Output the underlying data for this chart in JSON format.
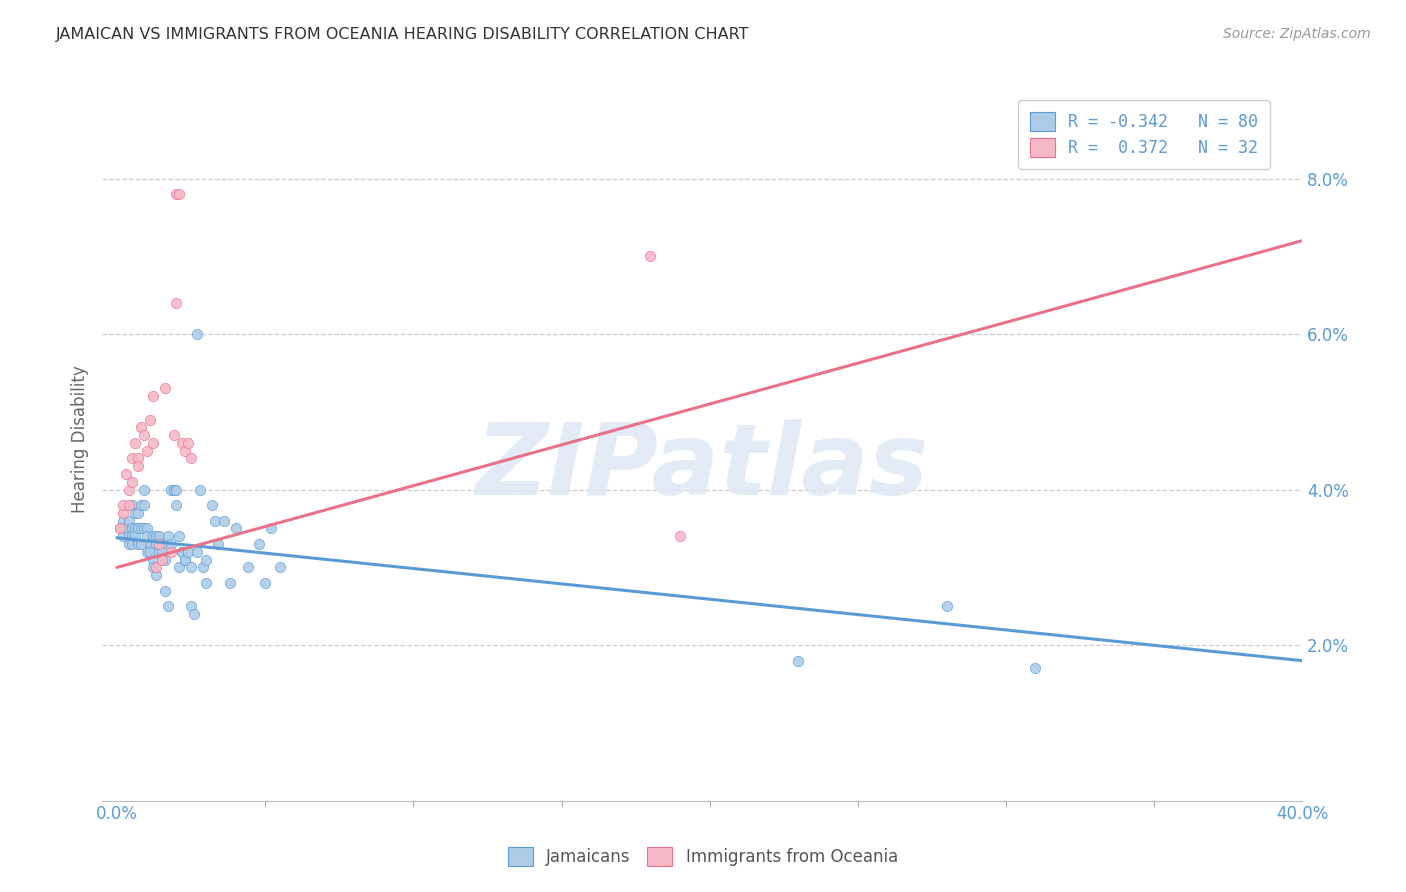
{
  "title": "JAMAICAN VS IMMIGRANTS FROM OCEANIA HEARING DISABILITY CORRELATION CHART",
  "source": "Source: ZipAtlas.com",
  "ylabel": "Hearing Disability",
  "legend_blue_label": "Jamaicans",
  "legend_pink_label": "Immigrants from Oceania",
  "legend_line1": "R = -0.342   N = 80",
  "legend_line2": "R =  0.372   N = 32",
  "watermark": "ZIPatlas",
  "blue_color": "#aecce8",
  "blue_line_color": "#5b9bd5",
  "pink_color": "#f4b8c8",
  "pink_line_color": "#e8728a",
  "blue_scatter": [
    [
      0.001,
      0.035
    ],
    [
      0.002,
      0.034
    ],
    [
      0.002,
      0.036
    ],
    [
      0.003,
      0.035
    ],
    [
      0.003,
      0.035
    ],
    [
      0.004,
      0.034
    ],
    [
      0.004,
      0.033
    ],
    [
      0.004,
      0.036
    ],
    [
      0.005,
      0.035
    ],
    [
      0.005,
      0.034
    ],
    [
      0.005,
      0.033
    ],
    [
      0.005,
      0.038
    ],
    [
      0.006,
      0.037
    ],
    [
      0.006,
      0.035
    ],
    [
      0.006,
      0.034
    ],
    [
      0.007,
      0.035
    ],
    [
      0.007,
      0.033
    ],
    [
      0.007,
      0.037
    ],
    [
      0.008,
      0.035
    ],
    [
      0.008,
      0.038
    ],
    [
      0.008,
      0.033
    ],
    [
      0.009,
      0.035
    ],
    [
      0.009,
      0.04
    ],
    [
      0.009,
      0.038
    ],
    [
      0.01,
      0.032
    ],
    [
      0.01,
      0.035
    ],
    [
      0.01,
      0.034
    ],
    [
      0.011,
      0.033
    ],
    [
      0.011,
      0.033
    ],
    [
      0.011,
      0.032
    ],
    [
      0.012,
      0.031
    ],
    [
      0.012,
      0.034
    ],
    [
      0.012,
      0.03
    ],
    [
      0.013,
      0.029
    ],
    [
      0.013,
      0.034
    ],
    [
      0.013,
      0.033
    ],
    [
      0.014,
      0.032
    ],
    [
      0.014,
      0.034
    ],
    [
      0.015,
      0.033
    ],
    [
      0.015,
      0.032
    ],
    [
      0.016,
      0.031
    ],
    [
      0.016,
      0.027
    ],
    [
      0.017,
      0.025
    ],
    [
      0.017,
      0.034
    ],
    [
      0.018,
      0.033
    ],
    [
      0.018,
      0.04
    ],
    [
      0.019,
      0.04
    ],
    [
      0.019,
      0.04
    ],
    [
      0.02,
      0.038
    ],
    [
      0.02,
      0.04
    ],
    [
      0.021,
      0.034
    ],
    [
      0.021,
      0.03
    ],
    [
      0.022,
      0.032
    ],
    [
      0.022,
      0.032
    ],
    [
      0.023,
      0.031
    ],
    [
      0.023,
      0.031
    ],
    [
      0.024,
      0.032
    ],
    [
      0.025,
      0.03
    ],
    [
      0.025,
      0.025
    ],
    [
      0.026,
      0.024
    ],
    [
      0.027,
      0.06
    ],
    [
      0.027,
      0.032
    ],
    [
      0.028,
      0.04
    ],
    [
      0.029,
      0.03
    ],
    [
      0.03,
      0.028
    ],
    [
      0.03,
      0.031
    ],
    [
      0.032,
      0.038
    ],
    [
      0.033,
      0.036
    ],
    [
      0.034,
      0.033
    ],
    [
      0.036,
      0.036
    ],
    [
      0.038,
      0.028
    ],
    [
      0.04,
      0.035
    ],
    [
      0.044,
      0.03
    ],
    [
      0.048,
      0.033
    ],
    [
      0.05,
      0.028
    ],
    [
      0.052,
      0.035
    ],
    [
      0.055,
      0.03
    ],
    [
      0.23,
      0.018
    ],
    [
      0.28,
      0.025
    ],
    [
      0.31,
      0.017
    ]
  ],
  "pink_scatter": [
    [
      0.001,
      0.035
    ],
    [
      0.002,
      0.037
    ],
    [
      0.002,
      0.038
    ],
    [
      0.003,
      0.042
    ],
    [
      0.004,
      0.04
    ],
    [
      0.004,
      0.038
    ],
    [
      0.005,
      0.044
    ],
    [
      0.005,
      0.041
    ],
    [
      0.006,
      0.046
    ],
    [
      0.007,
      0.044
    ],
    [
      0.007,
      0.043
    ],
    [
      0.008,
      0.048
    ],
    [
      0.009,
      0.047
    ],
    [
      0.01,
      0.045
    ],
    [
      0.011,
      0.049
    ],
    [
      0.012,
      0.052
    ],
    [
      0.013,
      0.03
    ],
    [
      0.014,
      0.033
    ],
    [
      0.015,
      0.031
    ],
    [
      0.016,
      0.053
    ],
    [
      0.018,
      0.032
    ],
    [
      0.019,
      0.047
    ],
    [
      0.02,
      0.078
    ],
    [
      0.021,
      0.078
    ],
    [
      0.022,
      0.046
    ],
    [
      0.023,
      0.045
    ],
    [
      0.024,
      0.046
    ],
    [
      0.025,
      0.044
    ],
    [
      0.18,
      0.07
    ],
    [
      0.19,
      0.034
    ],
    [
      0.02,
      0.064
    ],
    [
      0.012,
      0.046
    ]
  ],
  "blue_line_x": [
    0.0,
    0.4
  ],
  "blue_line_y": [
    0.0338,
    0.018
  ],
  "pink_line_x": [
    0.0,
    0.4
  ],
  "pink_line_y": [
    0.03,
    0.072
  ],
  "xlim": [
    -0.005,
    0.4
  ],
  "ylim": [
    0.0,
    0.093
  ],
  "xtick_minor": [
    0.05,
    0.1,
    0.15,
    0.2,
    0.25,
    0.3,
    0.35
  ],
  "ytick_vals": [
    0.02,
    0.04,
    0.06,
    0.08
  ],
  "ytick_labels": [
    "2.0%",
    "4.0%",
    "6.0%",
    "8.0%"
  ],
  "background_color": "#ffffff",
  "grid_color": "#cccccc"
}
